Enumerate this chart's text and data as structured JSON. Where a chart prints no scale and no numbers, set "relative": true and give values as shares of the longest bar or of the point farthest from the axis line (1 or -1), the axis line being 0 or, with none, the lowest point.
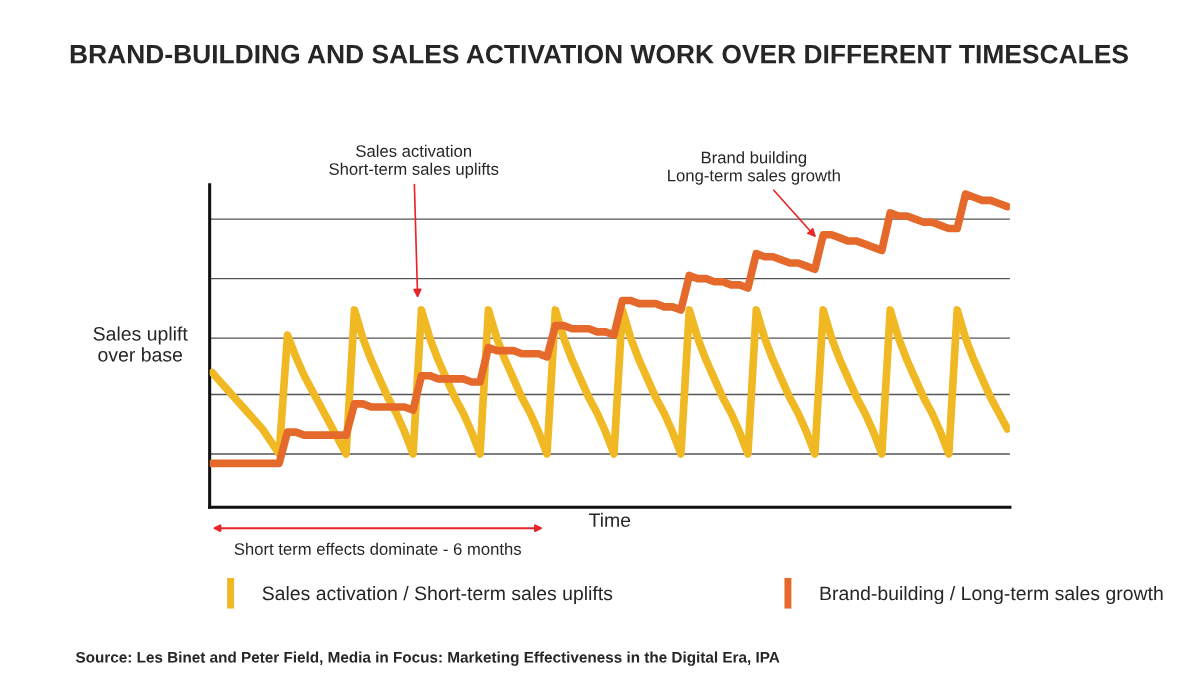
{
  "chart_data": {
    "type": "line",
    "title": "BRAND-BUILDING AND SALES ACTIVATION WORK OVER DIFFERENT TIMESCALES",
    "xlabel": "Time",
    "ylabel": "Sales uplift\nover base",
    "relative": true,
    "tick_labels": false,
    "legend": "bottom",
    "categories": [
      null,
      null,
      null,
      null,
      null,
      null,
      null,
      null,
      null,
      null,
      null,
      null,
      null,
      null,
      null,
      null,
      null,
      null,
      null,
      null,
      null,
      null,
      null,
      null,
      null,
      null,
      null,
      null,
      null,
      null,
      null,
      null,
      null,
      null,
      null,
      null,
      null,
      null,
      null,
      null,
      null,
      null,
      null,
      null,
      null,
      null,
      null,
      null,
      null,
      null,
      null,
      null,
      null,
      null,
      null,
      null,
      null,
      null,
      null,
      null,
      null,
      null,
      null,
      null,
      null,
      null,
      null,
      null,
      null,
      null,
      null,
      null,
      null,
      null,
      null,
      null,
      null,
      null,
      null,
      null,
      null,
      null,
      null,
      null,
      null,
      null,
      null,
      null,
      null,
      null,
      null,
      null,
      null,
      null,
      null,
      null
    ],
    "series": [
      {
        "name": "Sales activation / Short-term sales uplifts",
        "color": "#f0b823",
        "values": [
          0.43,
          0.4,
          0.37,
          0.34,
          0.31,
          0.28,
          0.25,
          0.21,
          0.17,
          0.55,
          0.48,
          0.42,
          0.37,
          0.32,
          0.27,
          0.22,
          0.17,
          0.63,
          0.54,
          0.47,
          0.41,
          0.35,
          0.3,
          0.24,
          0.17,
          0.63,
          0.54,
          0.47,
          0.41,
          0.35,
          0.3,
          0.24,
          0.17,
          0.63,
          0.54,
          0.47,
          0.41,
          0.35,
          0.3,
          0.24,
          0.17,
          0.63,
          0.54,
          0.47,
          0.41,
          0.35,
          0.3,
          0.24,
          0.17,
          0.63,
          0.54,
          0.47,
          0.41,
          0.35,
          0.3,
          0.24,
          0.17,
          0.63,
          0.54,
          0.47,
          0.41,
          0.35,
          0.3,
          0.24,
          0.17,
          0.63,
          0.54,
          0.47,
          0.41,
          0.35,
          0.3,
          0.24,
          0.17,
          0.63,
          0.54,
          0.47,
          0.41,
          0.35,
          0.3,
          0.24,
          0.17,
          0.63,
          0.54,
          0.47,
          0.41,
          0.35,
          0.3,
          0.24,
          0.17,
          0.63,
          0.54,
          0.47,
          0.41,
          0.35,
          0.3,
          0.25
        ]
      },
      {
        "name": "Brand-building / Long-term sales growth",
        "color": "#e5692a",
        "values": [
          0.14,
          0.14,
          0.14,
          0.14,
          0.14,
          0.14,
          0.14,
          0.14,
          0.14,
          0.24,
          0.24,
          0.23,
          0.23,
          0.23,
          0.23,
          0.23,
          0.23,
          0.33,
          0.33,
          0.32,
          0.32,
          0.32,
          0.32,
          0.32,
          0.31,
          0.42,
          0.42,
          0.41,
          0.41,
          0.41,
          0.41,
          0.4,
          0.4,
          0.51,
          0.5,
          0.5,
          0.5,
          0.49,
          0.49,
          0.49,
          0.48,
          0.58,
          0.58,
          0.57,
          0.57,
          0.57,
          0.56,
          0.56,
          0.55,
          0.66,
          0.66,
          0.65,
          0.65,
          0.65,
          0.64,
          0.64,
          0.63,
          0.74,
          0.73,
          0.73,
          0.72,
          0.72,
          0.71,
          0.71,
          0.7,
          0.81,
          0.8,
          0.8,
          0.79,
          0.78,
          0.78,
          0.77,
          0.76,
          0.87,
          0.87,
          0.86,
          0.85,
          0.85,
          0.84,
          0.83,
          0.82,
          0.94,
          0.93,
          0.93,
          0.92,
          0.91,
          0.91,
          0.9,
          0.89,
          0.89,
          1.0,
          0.99,
          0.98,
          0.98,
          0.97,
          0.96
        ]
      }
    ],
    "ref_lines": [
      {
        "axis": "y",
        "value": 0.17,
        "color": "#555555"
      },
      {
        "axis": "y",
        "value": 0.36,
        "color": "#555555"
      },
      {
        "axis": "y",
        "value": 0.54,
        "color": "#555555"
      },
      {
        "axis": "y",
        "value": 0.73,
        "color": "#555555"
      },
      {
        "axis": "y",
        "value": 0.92,
        "color": "#555555"
      }
    ],
    "annotations": [
      "Sales activation\nShort-term sales uplifts",
      "Brand building\nLong-term sales growth",
      "Short term effects dominate - 6 months",
      "Source: Les Binet and Peter Field, Media in Focus: Marketing Effectiveness in the Digital Era, IPA"
    ]
  }
}
